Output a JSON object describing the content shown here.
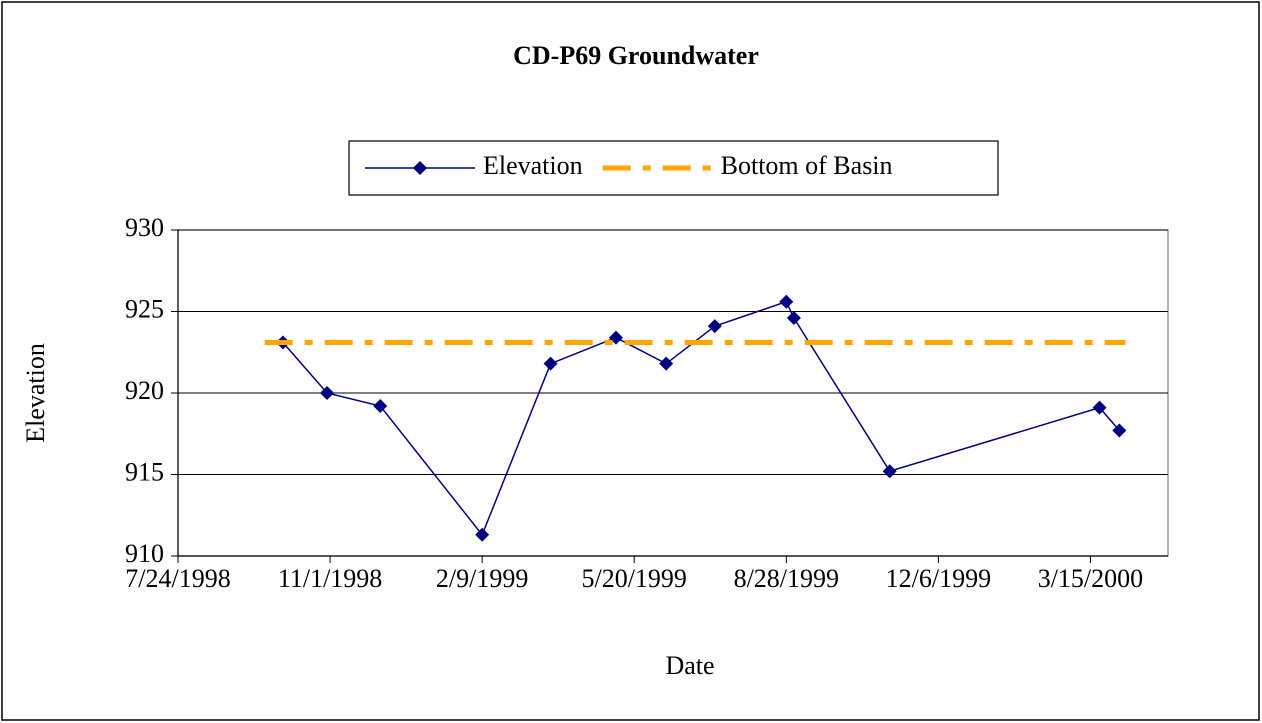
{
  "chart_data": {
    "type": "line",
    "title": "CD-P69 Groundwater",
    "x_label": "Date",
    "y_label": "Elevation",
    "xlim": [
      "1998-07-24",
      "2000-05-05"
    ],
    "xticks": [
      {
        "value": "1998-07-24",
        "label": "7/24/1998"
      },
      {
        "value": "1998-11-01",
        "label": "11/1/1998"
      },
      {
        "value": "1999-02-09",
        "label": "2/9/1999"
      },
      {
        "value": "1999-05-20",
        "label": "5/20/1999"
      },
      {
        "value": "1999-08-28",
        "label": "8/28/1999"
      },
      {
        "value": "1999-12-06",
        "label": "12/6/1999"
      },
      {
        "value": "2000-03-15",
        "label": "3/15/2000"
      }
    ],
    "ylim": [
      910,
      930
    ],
    "yticks": [
      910,
      915,
      920,
      925,
      930
    ],
    "grid": true,
    "series": [
      {
        "name": "Elevation",
        "color": "#000080",
        "marker": "diamond",
        "x": [
          "1998-10-01",
          "1998-10-30",
          "1998-12-04",
          "1999-02-09",
          "1999-03-26",
          "1999-05-08",
          "1999-06-10",
          "1999-07-12",
          "1999-08-28",
          "1999-09-02",
          "1999-11-04",
          "2000-03-21",
          "2000-04-03"
        ],
        "values": [
          923.1,
          920.0,
          919.2,
          911.3,
          921.8,
          923.4,
          921.8,
          924.1,
          925.6,
          924.6,
          915.2,
          919.1,
          917.7
        ]
      },
      {
        "name": "Bottom of Basin",
        "color": "#ffa500",
        "dash": "dash-dot",
        "x": [
          "1998-09-19",
          "2000-04-07"
        ],
        "values": [
          923.1,
          923.1
        ]
      }
    ]
  }
}
